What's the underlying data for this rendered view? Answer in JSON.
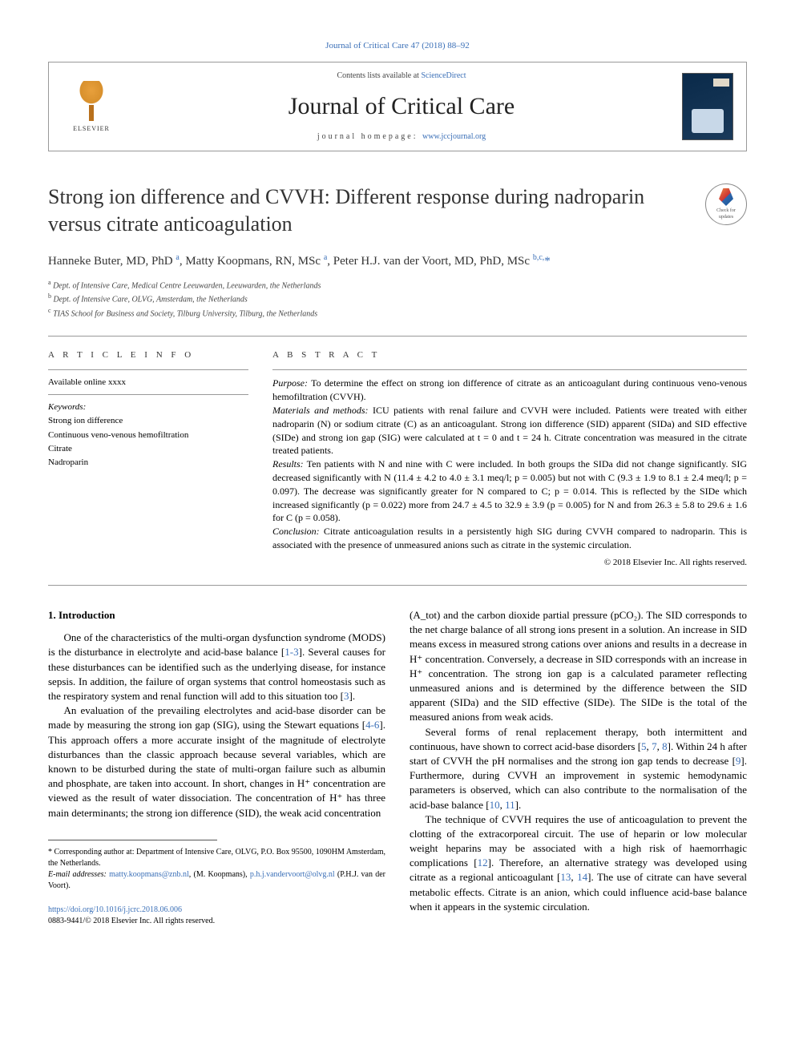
{
  "top_link": "Journal of Critical Care 47 (2018) 88–92",
  "header": {
    "elsevier": "ELSEVIER",
    "contents_prefix": "Contents lists available at ",
    "contents_link": "ScienceDirect",
    "journal_title": "Journal of Critical Care",
    "homepage_prefix": "journal homepage: ",
    "homepage_link": "www.jccjournal.org"
  },
  "check_updates": {
    "line1": "Check for",
    "line2": "updates"
  },
  "article": {
    "title": "Strong ion difference and CVVH: Different response during nadroparin versus citrate anticoagulation",
    "authors_html": "Hanneke Buter, MD, PhD <sup>a</sup>, Matty Koopmans, RN, MSc <sup>a</sup>, Peter H.J. van der Voort, MD, PhD, MSc <sup>b,c,</sup><span class='corr-star'>*</span>",
    "affiliations": [
      {
        "sup": "a",
        "text": "Dept. of Intensive Care, Medical Centre Leeuwarden, Leeuwarden, the Netherlands"
      },
      {
        "sup": "b",
        "text": "Dept. of Intensive Care, OLVG, Amsterdam, the Netherlands"
      },
      {
        "sup": "c",
        "text": "TIAS School for Business and Society, Tilburg University, Tilburg, the Netherlands"
      }
    ]
  },
  "article_info": {
    "header": "A R T I C L E   I N F O",
    "available": "Available online xxxx",
    "keywords_label": "Keywords:",
    "keywords": [
      "Strong ion difference",
      "Continuous veno-venous hemofiltration",
      "Citrate",
      "Nadroparin"
    ]
  },
  "abstract": {
    "header": "A B S T R A C T",
    "purpose_label": "Purpose:",
    "purpose": " To determine the effect on strong ion difference of citrate as an anticoagulant during continuous veno-venous hemofiltration (CVVH).",
    "methods_label": "Materials and methods:",
    "methods": " ICU patients with renal failure and CVVH were included. Patients were treated with either nadroparin (N) or sodium citrate (C) as an anticoagulant. Strong ion difference (SID) apparent (SIDa) and SID effective (SIDe) and strong ion gap (SIG) were calculated at t = 0 and t = 24 h. Citrate concentration was measured in the citrate treated patients.",
    "results_label": "Results:",
    "results": " Ten patients with N and nine with C were included. In both groups the SIDa did not change significantly. SIG decreased significantly with N (11.4 ± 4.2 to 4.0 ± 3.1 meq/l; p = 0.005) but not with C (9.3 ± 1.9 to 8.1 ± 2.4 meq/l; p = 0.097). The decrease was significantly greater for N compared to C; p = 0.014. This is reflected by the SIDe which increased significantly (p = 0.022) more from 24.7 ± 4.5 to 32.9 ± 3.9 (p = 0.005) for N and from 26.3 ± 5.8 to 29.6 ± 1.6 for C (p = 0.058).",
    "conclusion_label": "Conclusion:",
    "conclusion": " Citrate anticoagulation results in a persistently high SIG during CVVH compared to nadroparin. This is associated with the presence of unmeasured anions such as citrate in the systemic circulation.",
    "copyright": "© 2018 Elsevier Inc. All rights reserved."
  },
  "body": {
    "intro_heading": "1. Introduction",
    "left_p1": "One of the characteristics of the multi-organ dysfunction syndrome (MODS) is the disturbance in electrolyte and acid-base balance [",
    "left_p1_ref": "1-3",
    "left_p1_cont": "]. Several causes for these disturbances can be identified such as the underlying disease, for instance sepsis. In addition, the failure of organ systems that control homeostasis such as the respiratory system and renal function will add to this situation too [",
    "left_p1_ref2": "3",
    "left_p1_end": "].",
    "left_p2a": "An evaluation of the prevailing electrolytes and acid-base disorder can be made by measuring the strong ion gap (SIG), using the Stewart equations [",
    "left_p2_ref": "4-6",
    "left_p2b": "]. This approach offers a more accurate insight of the magnitude of electrolyte disturbances than the classic approach because several variables, which are known to be disturbed during the state of multi-organ failure such as albumin and phosphate, are taken into account. In short, changes in H⁺ concentration are viewed as the result of water dissociation. The concentration of H⁺ has three main determinants; the strong ion difference (SID), the weak acid concentration",
    "right_p1": "(A_tot) and the carbon dioxide partial pressure (pCO₂). The SID corresponds to the net charge balance of all strong ions present in a solution. An increase in SID means excess in measured strong cations over anions and results in a decrease in H⁺ concentration. Conversely, a decrease in SID corresponds with an increase in H⁺ concentration. The strong ion gap is a calculated parameter reflecting unmeasured anions and is determined by the difference between the SID apparent (SIDa) and the SID effective (SIDe). The SIDe is the total of the measured anions from weak acids.",
    "right_p2a": "Several forms of renal replacement therapy, both intermittent and continuous, have shown to correct acid-base disorders [",
    "right_p2_ref1": "5",
    "right_p2_sep1": ", ",
    "right_p2_ref2": "7",
    "right_p2_sep2": ", ",
    "right_p2_ref3": "8",
    "right_p2b": "]. Within 24 h after start of CVVH the pH normalises and the strong ion gap tends to decrease [",
    "right_p2_ref4": "9",
    "right_p2c": "]. Furthermore, during CVVH an improvement in systemic hemodynamic parameters is observed, which can also contribute to the normalisation of the acid-base balance [",
    "right_p2_ref5": "10",
    "right_p2_sep3": ", ",
    "right_p2_ref6": "11",
    "right_p2d": "].",
    "right_p3a": "The technique of CVVH requires the use of anticoagulation to prevent the clotting of the extracorporeal circuit. The use of heparin or low molecular weight heparins may be associated with a high risk of haemorrhagic complications [",
    "right_p3_ref1": "12",
    "right_p3b": "]. Therefore, an alternative strategy was developed using citrate as a regional anticoagulant [",
    "right_p3_ref2": "13",
    "right_p3_sep": ", ",
    "right_p3_ref3": "14",
    "right_p3c": "]. The use of citrate can have several metabolic effects. Citrate is an anion, which could influence acid-base balance when it appears in the systemic circulation."
  },
  "footnotes": {
    "corr": "* Corresponding author at: Department of Intensive Care, OLVG, P.O. Box 95500, 1090HM Amsterdam, the Netherlands.",
    "email_label": "E-mail addresses:",
    "email1": "matty.koopmans@znb.nl",
    "email1_who": ", (M. Koopmans), ",
    "email2": "p.h.j.vandervoort@olvg.nl",
    "email2_who": " (P.H.J. van der Voort)."
  },
  "bottom": {
    "doi": "https://doi.org/10.1016/j.jcrc.2018.06.006",
    "issn_line": "0883-9441/© 2018 Elsevier Inc. All rights reserved."
  }
}
